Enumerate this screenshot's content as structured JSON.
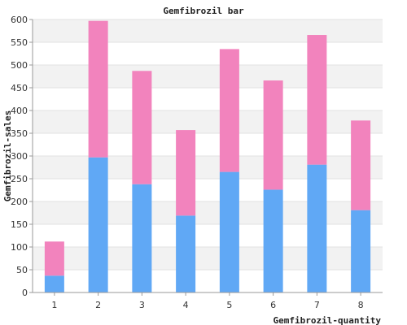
{
  "chart_data": {
    "type": "bar",
    "stacked": true,
    "title": "Gemfibrozil bar",
    "xlabel": "Gemfibrozil-quantity",
    "ylabel": "Gemfibrozil-sales",
    "categories": [
      "1",
      "2",
      "3",
      "4",
      "5",
      "6",
      "7",
      "8"
    ],
    "series": [
      {
        "values": [
          37,
          297,
          238,
          169,
          265,
          226,
          281,
          181
        ],
        "color": "#60a8f5"
      },
      {
        "values": [
          75,
          300,
          249,
          188,
          270,
          240,
          285,
          197
        ],
        "color": "#f283bd"
      }
    ],
    "ylim": [
      0,
      600
    ],
    "yticks": [
      "0",
      "50",
      "100",
      "150",
      "200",
      "250",
      "300",
      "350",
      "400",
      "450",
      "500",
      "550",
      "600"
    ],
    "grid": true,
    "band_colors": [
      "#ffffff",
      "#f2f2f2"
    ]
  }
}
